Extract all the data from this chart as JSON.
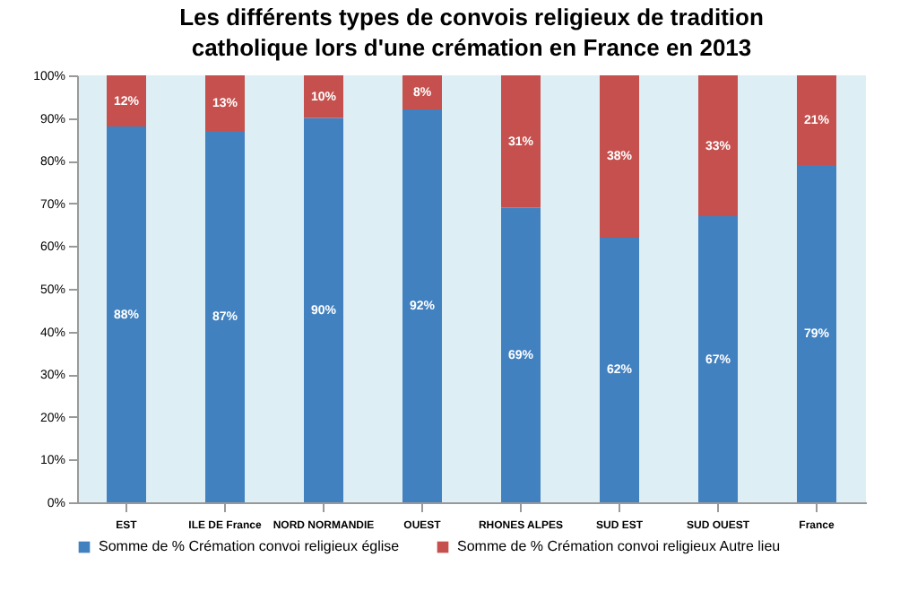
{
  "chart_data": {
    "type": "bar",
    "title": "Les différents types de convois religieux de tradition catholique lors d'une crémation en France en 2013",
    "categories": [
      "EST",
      "ILE DE France",
      "NORD NORMANDIE",
      "OUEST",
      "RHONES ALPES",
      "SUD EST",
      "SUD OUEST",
      "France"
    ],
    "series": [
      {
        "name": "Somme de % Crémation convoi religieux église",
        "color": "#4281c0",
        "values": [
          88,
          87,
          90,
          92,
          69,
          62,
          67,
          79
        ]
      },
      {
        "name": "Somme de % Crémation convoi religieux Autre lieu",
        "color": "#c5504d",
        "values": [
          12,
          13,
          10,
          8,
          31,
          38,
          33,
          21
        ]
      }
    ],
    "value_labels": [
      [
        "88%",
        "87%",
        "90%",
        "92%",
        "69%",
        "62%",
        "67%",
        "79%"
      ],
      [
        "12%",
        "13%",
        "10%",
        "8%",
        "31%",
        "38%",
        "33%",
        "21%"
      ]
    ],
    "stacked": true,
    "ylim": [
      0,
      100
    ],
    "yticks": [
      {
        "value": 0,
        "label": "0%"
      },
      {
        "value": 10,
        "label": "10%"
      },
      {
        "value": 20,
        "label": "20%"
      },
      {
        "value": 30,
        "label": "30%"
      },
      {
        "value": 40,
        "label": "40%"
      },
      {
        "value": 50,
        "label": "50%"
      },
      {
        "value": 60,
        "label": "60%"
      },
      {
        "value": 70,
        "label": "70%"
      },
      {
        "value": 80,
        "label": "80%"
      },
      {
        "value": 90,
        "label": "90%"
      },
      {
        "value": 100,
        "label": "100%"
      }
    ],
    "grid": false,
    "legend": "bottom"
  }
}
